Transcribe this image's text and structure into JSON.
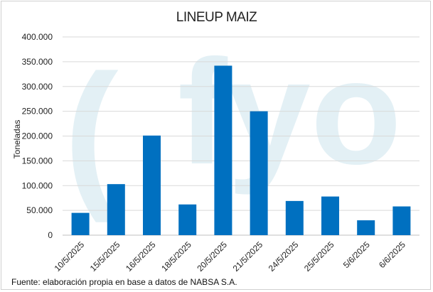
{
  "chart_data": {
    "type": "bar",
    "title": "LINEUP MAIZ",
    "ylabel": "Toneladas",
    "xlabel": "",
    "categories": [
      "10/5/2025",
      "15/5/2025",
      "16/5/2025",
      "18/5/2025",
      "20/5/2025",
      "21/5/2025",
      "24/5/2025",
      "25/5/2025",
      "5/6/2025",
      "6/6/2025"
    ],
    "values": [
      45000,
      103000,
      201000,
      62000,
      342000,
      250000,
      69000,
      78000,
      30000,
      58000
    ],
    "ylim": [
      0,
      400000
    ],
    "yticks": [
      0,
      50000,
      100000,
      150000,
      200000,
      250000,
      300000,
      350000,
      400000
    ],
    "ytick_labels": [
      "0",
      "50.000",
      "100.000",
      "150.000",
      "200.000",
      "250.000",
      "300.000",
      "350.000",
      "400.000"
    ],
    "grid": true,
    "bar_color": "#0070C0",
    "grid_color": "#d9d9d9",
    "watermark": "fyo",
    "watermark_color": "#e3f0f5"
  },
  "source_note": "Fuente: elaboración propia en base a datos de NABSA S.A."
}
